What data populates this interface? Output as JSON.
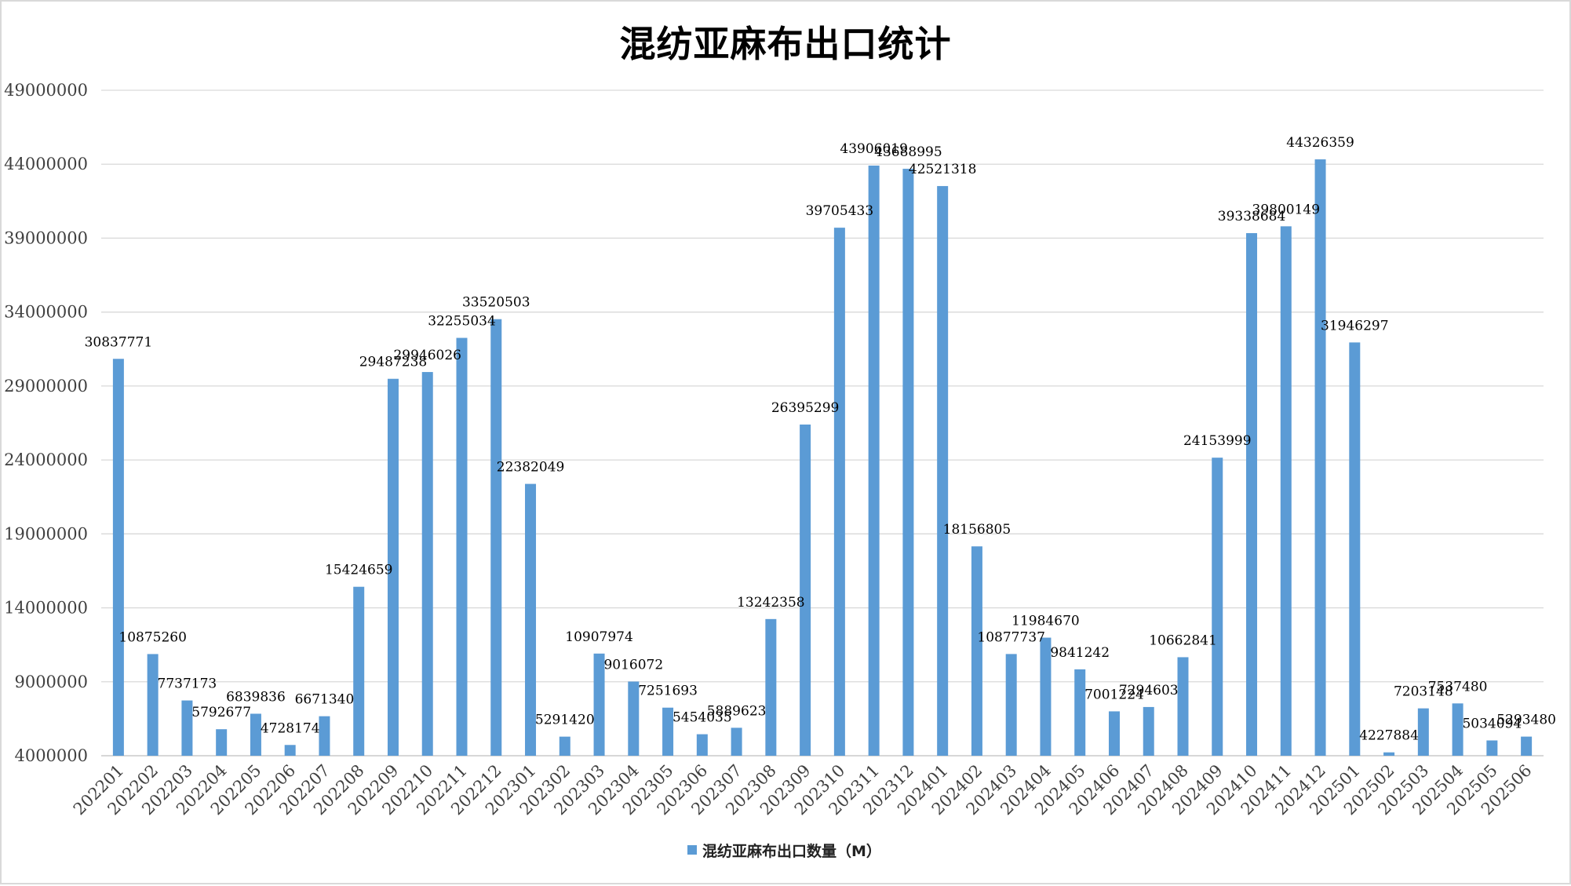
{
  "chart_data": {
    "type": "bar",
    "title": "混纺亚麻布出口统计",
    "xlabel": "",
    "ylabel": "",
    "ylim": [
      4000000,
      49000000
    ],
    "yticks": [
      4000000,
      9000000,
      14000000,
      19000000,
      24000000,
      29000000,
      34000000,
      39000000,
      44000000,
      49000000
    ],
    "ytick_labels": [
      "4000000",
      "9000000",
      "14000000",
      "19000000",
      "24000000",
      "29000000",
      "34000000",
      "39000000",
      "44000000",
      "49000000"
    ],
    "grid": true,
    "legend_position": "bottom",
    "bar_color": "#5b9bd5",
    "categories": [
      "202201",
      "202202",
      "202203",
      "202204",
      "202205",
      "202206",
      "202207",
      "202208",
      "202209",
      "202210",
      "202211",
      "202212",
      "202301",
      "202302",
      "202303",
      "202304",
      "202305",
      "202306",
      "202307",
      "202308",
      "202309",
      "202310",
      "202311",
      "202312",
      "202401",
      "202402",
      "202403",
      "202404",
      "202405",
      "202406",
      "202407",
      "202408",
      "202409",
      "202410",
      "202411",
      "202412",
      "202501",
      "202502",
      "202503",
      "202504",
      "202505",
      "202506"
    ],
    "series": [
      {
        "name": "混纺亚麻布出口数量（M）",
        "values": [
          30837771,
          10875260,
          7737173,
          5792677,
          6839836,
          4728174,
          6671340,
          15424659,
          29487238,
          29946026,
          32255034,
          33520503,
          22382049,
          5291420,
          10907974,
          9016072,
          7251693,
          5454035,
          5889623,
          13242358,
          26395299,
          39705433,
          43906019,
          43688995,
          42521318,
          18156805,
          10877737,
          11984670,
          9841242,
          7001224,
          7294603,
          10662841,
          24153999,
          39338684,
          39800149,
          44326359,
          31946297,
          4227884,
          7203148,
          7537480,
          5034094,
          5293480
        ],
        "data_labels": [
          "30837771",
          "10875260",
          "7737173",
          "5792677",
          "6839836",
          "4728174",
          "6671340",
          "15424659",
          "29487238",
          "29946026",
          "32255034",
          "33520503",
          "22382049",
          "5291420",
          "10907974",
          "9016072",
          "7251693",
          "5454035",
          "5889623",
          "13242358",
          "26395299",
          "39705433",
          "43906019",
          "43688995",
          "42521318",
          "18156805",
          "10877737",
          "11984670",
          "9841242",
          "7001224",
          "7294603",
          "10662841",
          "24153999",
          "39338684",
          "39800149",
          "44326359",
          "31946297",
          "4227884",
          "7203148",
          "7537480",
          "5034094",
          "5293480"
        ]
      }
    ]
  }
}
